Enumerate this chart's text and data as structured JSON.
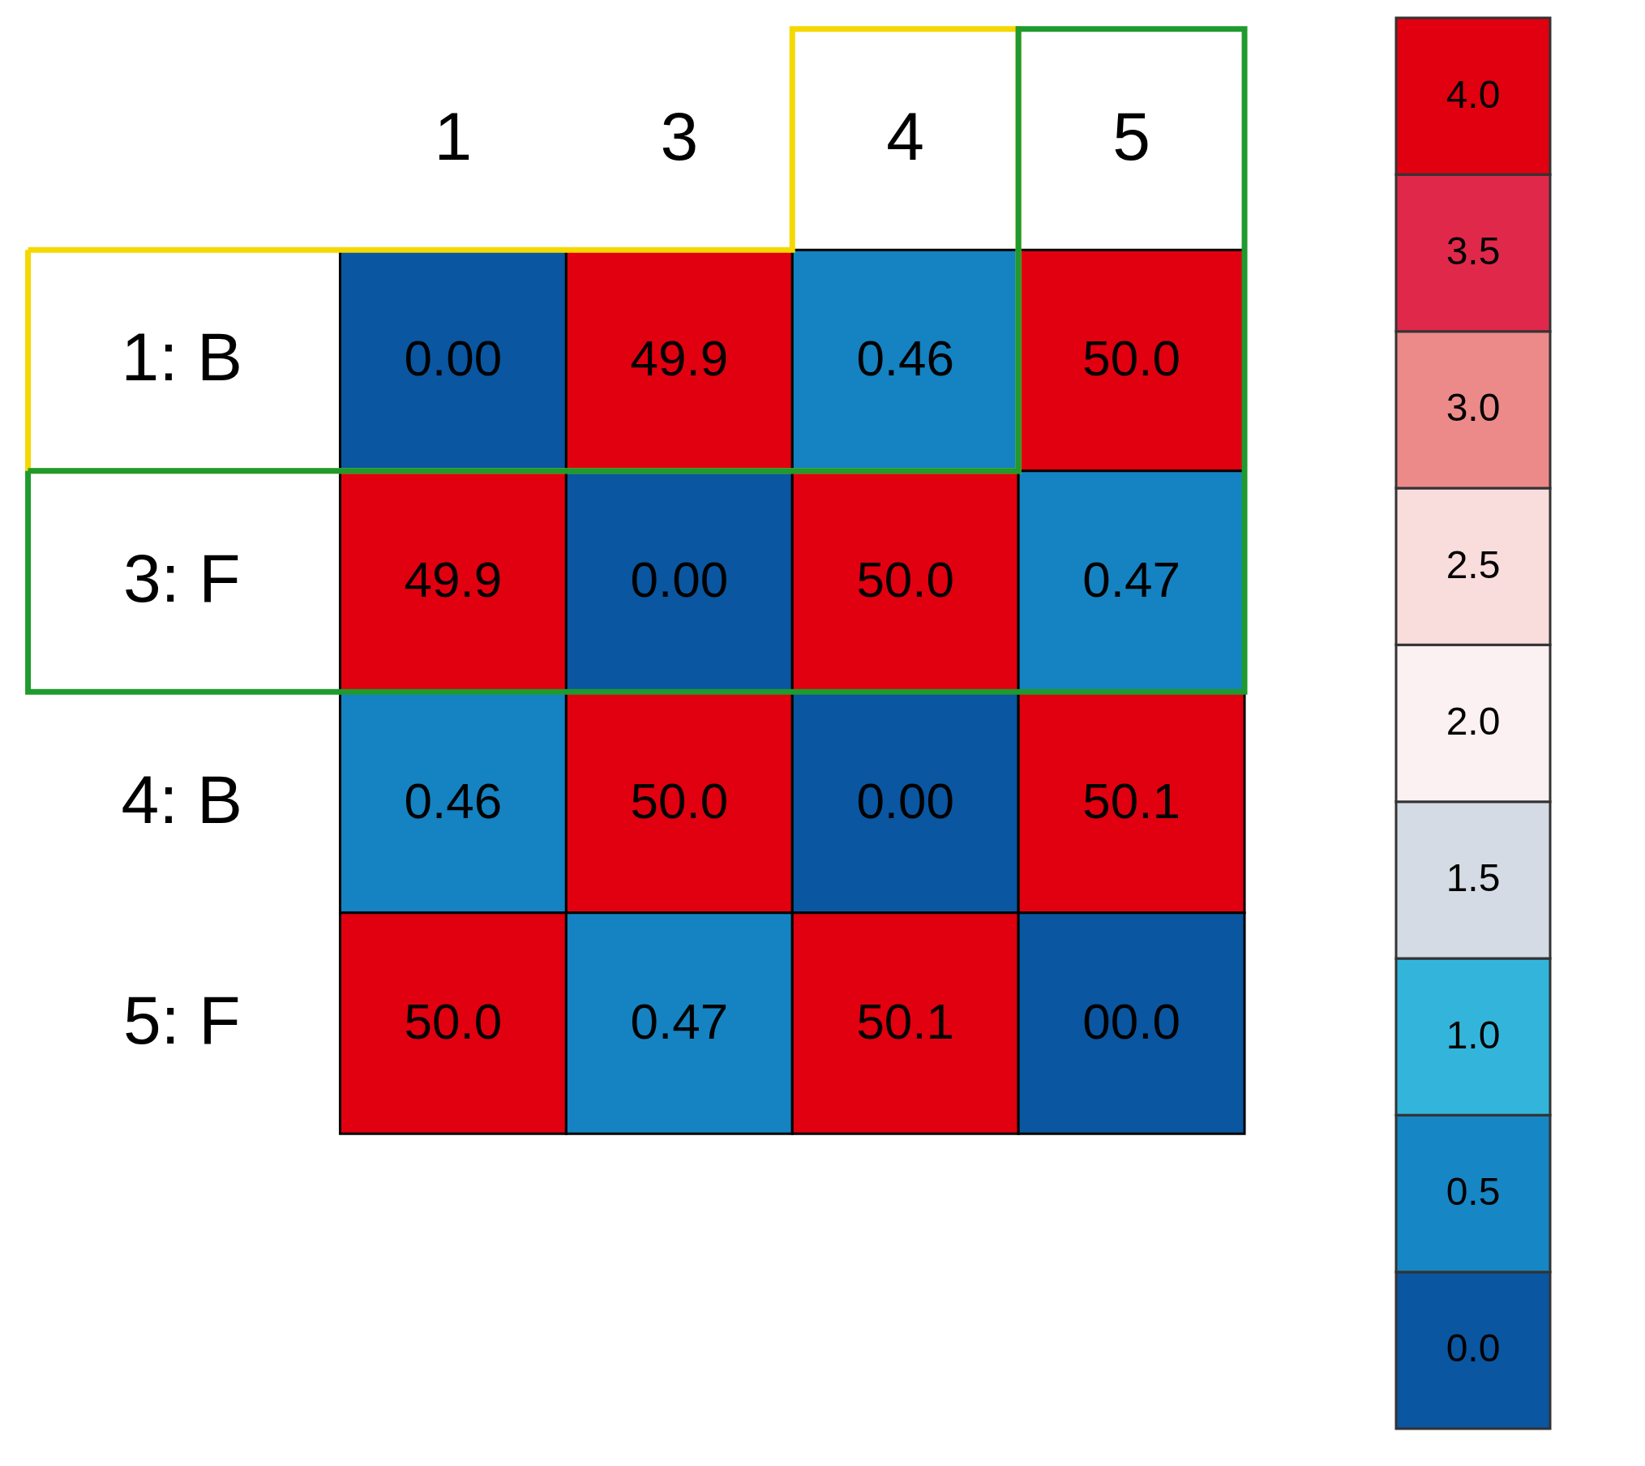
{
  "chart_data": {
    "type": "heatmap",
    "categories": [
      "1",
      "3",
      "4",
      "5"
    ],
    "y_categories": [
      "1: B",
      "3: F",
      "4: B",
      "5: F"
    ],
    "cells": [
      [
        0.0,
        49.9,
        0.46,
        50.0
      ],
      [
        49.9,
        0.0,
        50.0,
        0.47
      ],
      [
        0.46,
        50.0,
        0.0,
        50.1
      ],
      [
        50.0,
        0.47,
        50.1,
        0.0
      ]
    ],
    "cell_labels": [
      [
        "0.00",
        "49.9",
        "0.46",
        "50.0"
      ],
      [
        "49.9",
        "0.00",
        "50.0",
        "0.47"
      ],
      [
        "0.46",
        "50.0",
        "0.00",
        "50.1"
      ],
      [
        "50.0",
        "0.47",
        "50.1",
        "00.0"
      ]
    ],
    "clim": [
      0,
      4
    ],
    "cticks": [
      {
        "value": 0,
        "label": "0.0"
      },
      {
        "value": 0.5,
        "label": "0.5"
      },
      {
        "value": 1,
        "label": "1.0"
      },
      {
        "value": 1.5,
        "label": "1.5"
      },
      {
        "value": 2,
        "label": "2.0"
      },
      {
        "value": 2.5,
        "label": "2.5"
      },
      {
        "value": 3,
        "label": "3.0"
      },
      {
        "value": 3.5,
        "label": "3.5"
      },
      {
        "value": 4,
        "label": "4.0"
      }
    ],
    "colors": [
      "#0a56a0",
      "#1686c4",
      "#33b5db",
      "#d4dbe5",
      "#fbf0f2",
      "#f9dcdc",
      "#ec8a8a",
      "#e0294a",
      "#e00010"
    ]
  }
}
